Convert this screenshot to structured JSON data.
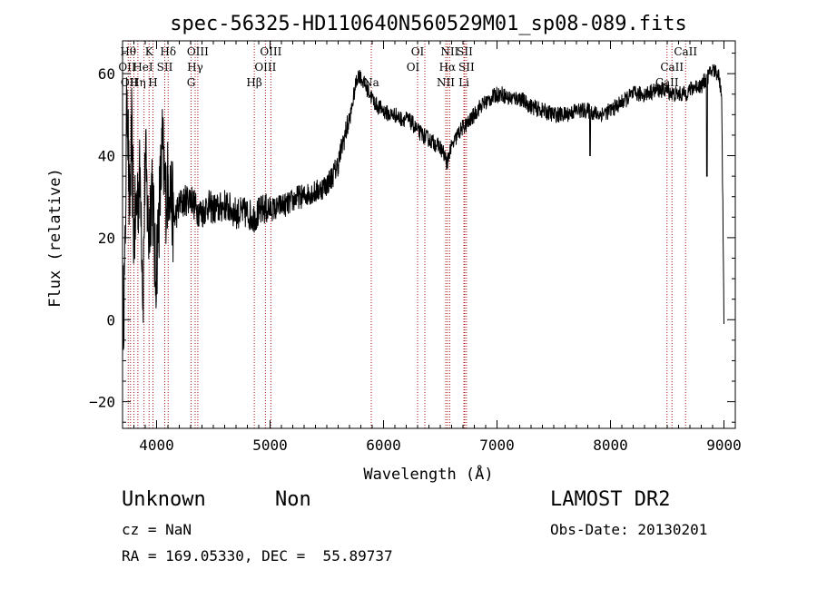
{
  "chart_data": {
    "type": "line",
    "title": "spec-56325-HD110640N560529M01_sp08-089.fits",
    "xlabel": "Wavelength (Å)",
    "ylabel": "Flux (relative)",
    "xlim": [
      3700,
      9100
    ],
    "ylim": [
      -26.5,
      68
    ],
    "xticks": [
      4000,
      5000,
      6000,
      7000,
      8000,
      9000
    ],
    "yticks": [
      -20,
      0,
      20,
      40,
      60
    ],
    "grid": false,
    "line_color": "#000000",
    "marker_color": "#aa1111",
    "spectrum_anchors": {
      "x": [
        3700,
        3720,
        3740,
        3760,
        3780,
        3800,
        3830,
        3860,
        3880,
        3900,
        3930,
        3960,
        3990,
        4020,
        4050,
        4080,
        4110,
        4150,
        4200,
        4250,
        4300,
        4350,
        4400,
        4450,
        4500,
        4550,
        4600,
        4650,
        4700,
        4750,
        4800,
        4850,
        4900,
        4950,
        5000,
        5050,
        5100,
        5150,
        5200,
        5250,
        5300,
        5350,
        5400,
        5450,
        5500,
        5550,
        5600,
        5640,
        5680,
        5710,
        5740,
        5760,
        5780,
        5800,
        5820,
        5840,
        5860,
        5880,
        5900,
        5920,
        5950,
        6000,
        6050,
        6100,
        6150,
        6200,
        6250,
        6300,
        6350,
        6400,
        6450,
        6500,
        6540,
        6560,
        6580,
        6600,
        6620,
        6650,
        6700,
        6750,
        6800,
        6850,
        6900,
        6950,
        7000,
        7050,
        7100,
        7150,
        7200,
        7300,
        7400,
        7500,
        7600,
        7700,
        7800,
        7900,
        8000,
        8100,
        8200,
        8300,
        8400,
        8500,
        8550,
        8600,
        8650,
        8700,
        8750,
        8800,
        8850,
        8900,
        8950,
        8980,
        9000
      ],
      "y": [
        0,
        10,
        60,
        25,
        45,
        20,
        30,
        35,
        5,
        40,
        20,
        35,
        10,
        25,
        42,
        30,
        35,
        24,
        28,
        29,
        30,
        27,
        26,
        28,
        27,
        27,
        28,
        27,
        26,
        26,
        26,
        25,
        26,
        27,
        27,
        27,
        28,
        28,
        29,
        30,
        30,
        31,
        31,
        32,
        33,
        35,
        38,
        43,
        47,
        50,
        55,
        58,
        60,
        59,
        58,
        57,
        56,
        55,
        54,
        53,
        52,
        51,
        50,
        50,
        49,
        49,
        48,
        46,
        45,
        44,
        43,
        42,
        40,
        38,
        41,
        42,
        43,
        45,
        47,
        48,
        50,
        52,
        53,
        54,
        55,
        55,
        54,
        54,
        54,
        52,
        51,
        50,
        50,
        51,
        51,
        50,
        51,
        53,
        55,
        55,
        56,
        56,
        55,
        55,
        55,
        56,
        57,
        57,
        59,
        61,
        60,
        55,
        0
      ]
    },
    "noise_amplitude": [
      {
        "x_from": 3700,
        "x_to": 4150,
        "amp": 12
      },
      {
        "x_from": 4150,
        "x_to": 5000,
        "amp": 4
      },
      {
        "x_from": 5000,
        "x_to": 5700,
        "amp": 3
      },
      {
        "x_from": 5700,
        "x_to": 9000,
        "amp": 2
      }
    ],
    "absorption_dips": [
      {
        "x": 6563,
        "y": 37
      },
      {
        "x": 7820,
        "y": 40
      },
      {
        "x": 8850,
        "y": 35
      }
    ],
    "line_markers": [
      {
        "x": 3750,
        "label": "Hθ"
      },
      {
        "x": 3770,
        "label": "OII"
      },
      {
        "x": 3800,
        "label": "OII"
      },
      {
        "x": 3835,
        "label": "Hη"
      },
      {
        "x": 3889,
        "label": "HeI"
      },
      {
        "x": 3934,
        "label": "K"
      },
      {
        "x": 3968,
        "label": "H"
      },
      {
        "x": 4072,
        "label": "SII"
      },
      {
        "x": 4102,
        "label": "Hδ"
      },
      {
        "x": 4304,
        "label": "G"
      },
      {
        "x": 4340,
        "label": "Hγ"
      },
      {
        "x": 4363,
        "label": "OIII"
      },
      {
        "x": 4861,
        "label": "Hβ"
      },
      {
        "x": 4959,
        "label": "OIII"
      },
      {
        "x": 5007,
        "label": "OIII"
      },
      {
        "x": 5892,
        "label": "Na"
      },
      {
        "x": 6300,
        "label": "OI"
      },
      {
        "x": 6364,
        "label": "OI"
      },
      {
        "x": 6548,
        "label": "NII"
      },
      {
        "x": 6563,
        "label": "Hα"
      },
      {
        "x": 6583,
        "label": "NII"
      },
      {
        "x": 6708,
        "label": "Li"
      },
      {
        "x": 6716,
        "label": "SII"
      },
      {
        "x": 6731,
        "label": "SII"
      },
      {
        "x": 8498,
        "label": "CaII"
      },
      {
        "x": 8542,
        "label": "CaII"
      },
      {
        "x": 8662,
        "label": "CaII"
      }
    ]
  },
  "marker_labels": [
    {
      "text": "Hθ",
      "x": 3750,
      "row": 0
    },
    {
      "text": "K",
      "x": 3934,
      "row": 0
    },
    {
      "text": "Hδ",
      "x": 4102,
      "row": 0
    },
    {
      "text": "OIII",
      "x": 4363,
      "row": 0
    },
    {
      "text": "OIII",
      "x": 5007,
      "row": 0
    },
    {
      "text": "OI",
      "x": 6300,
      "row": 0
    },
    {
      "text": "NII",
      "x": 6583,
      "row": 0
    },
    {
      "text": "SII",
      "x": 6716,
      "row": 0
    },
    {
      "text": "CaII",
      "x": 8662,
      "row": 0
    },
    {
      "text": "OII",
      "x": 3740,
      "row": 1
    },
    {
      "text": "HeI",
      "x": 3880,
      "row": 1
    },
    {
      "text": "SII",
      "x": 4072,
      "row": 1
    },
    {
      "text": "Hγ",
      "x": 4340,
      "row": 1
    },
    {
      "text": "OIII",
      "x": 4959,
      "row": 1
    },
    {
      "text": "OI",
      "x": 6260,
      "row": 1
    },
    {
      "text": "Hα",
      "x": 6563,
      "row": 1
    },
    {
      "text": "SII",
      "x": 6731,
      "row": 1
    },
    {
      "text": "CaII",
      "x": 8542,
      "row": 1
    },
    {
      "text": "OII",
      "x": 3760,
      "row": 2
    },
    {
      "text": "Hη",
      "x": 3835,
      "row": 2
    },
    {
      "text": "H",
      "x": 3968,
      "row": 2
    },
    {
      "text": "G",
      "x": 4304,
      "row": 2
    },
    {
      "text": "Hβ",
      "x": 4861,
      "row": 2
    },
    {
      "text": "Na",
      "x": 5892,
      "row": 2
    },
    {
      "text": "NII",
      "x": 6548,
      "row": 2
    },
    {
      "text": "Li",
      "x": 6708,
      "row": 2
    },
    {
      "text": "CaII",
      "x": 8498,
      "row": 2
    }
  ],
  "footer": {
    "object_class": "Unknown",
    "object_subclass": "Non",
    "survey": "LAMOST DR2",
    "cz": "cz = NaN",
    "obs_date": "Obs-Date: 20130201",
    "coords": "RA = 169.05330, DEC =  55.89737"
  }
}
